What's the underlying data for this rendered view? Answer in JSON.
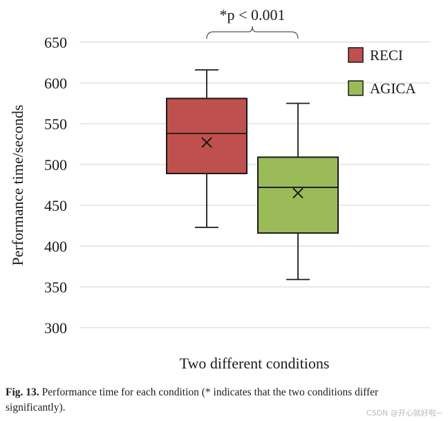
{
  "chart_data": {
    "type": "boxplot",
    "xlabel": "Two different conditions",
    "ylabel": "Performance time/seconds",
    "ylim": [
      300,
      650
    ],
    "yticks": [
      300,
      350,
      400,
      450,
      500,
      550,
      600,
      650
    ],
    "grid": true,
    "legend_position": "top-right",
    "series": [
      {
        "name": "RECI",
        "color": "#c0504d",
        "min": 423,
        "q1": 489,
        "median": 538,
        "q3": 581,
        "max": 616,
        "mean": 527
      },
      {
        "name": "AGICA",
        "color": "#9bbb59",
        "min": 359,
        "q1": 416,
        "median": 472,
        "q3": 509,
        "max": 575,
        "mean": 465
      }
    ],
    "annotation": "*p < 0.001"
  },
  "caption": {
    "label": "Fig. 13.",
    "text": "Performance time for each condition (* indicates that the two conditions differ significantly)."
  },
  "watermark": "CSDN @开心就好啦~"
}
